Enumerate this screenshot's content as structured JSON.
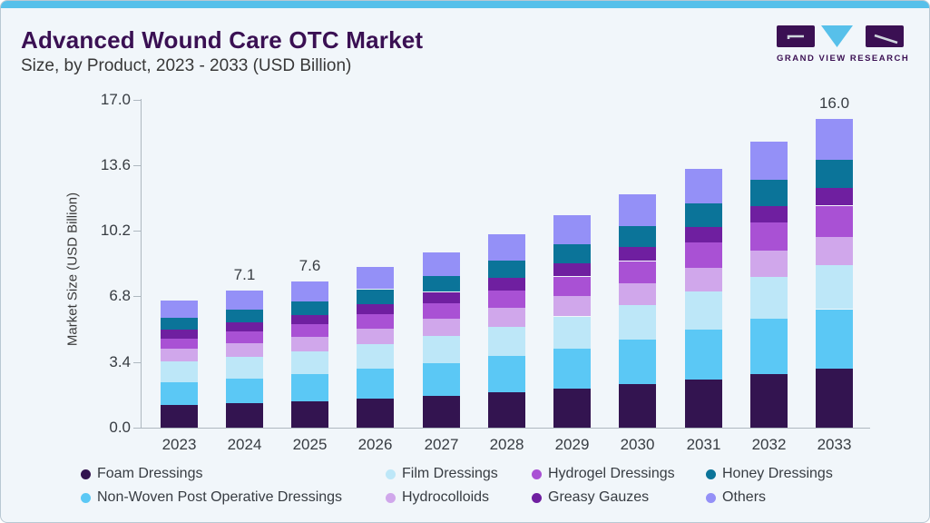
{
  "header": {
    "title": "Advanced Wound Care OTC Market",
    "subtitle": "Size, by Product, 2023 - 2033 (USD Billion)",
    "logo_text": "GRAND VIEW RESEARCH"
  },
  "colors": {
    "accent_bar": "#57c0ea",
    "card_background": "#f1f6fa",
    "title_text": "#3a1053",
    "axis_line": "#aeb8c0"
  },
  "chart_data": {
    "type": "bar",
    "stacked": true,
    "title": "Advanced Wound Care OTC Market Size, by Product, 2023 - 2033 (USD Billion)",
    "ylabel": "Market Size (USD Billion)",
    "ylim": [
      0,
      17
    ],
    "yticks": [
      "0.0",
      "3.4",
      "6.8",
      "10.2",
      "13.6",
      "17.0"
    ],
    "grid": false,
    "legend_position": "bottom",
    "categories": [
      "2023",
      "2024",
      "2025",
      "2026",
      "2027",
      "2028",
      "2029",
      "2030",
      "2031",
      "2032",
      "2033"
    ],
    "series": [
      {
        "name": "Foam Dressings",
        "color": "#331450",
        "values": [
          1.16,
          1.25,
          1.35,
          1.49,
          1.65,
          1.83,
          2.02,
          2.24,
          2.51,
          2.79,
          3.04
        ]
      },
      {
        "name": "Non-Woven Post Operative Dressings",
        "color": "#5bc8f5",
        "values": [
          1.21,
          1.31,
          1.41,
          1.55,
          1.71,
          1.89,
          2.09,
          2.31,
          2.57,
          2.86,
          3.1
        ]
      },
      {
        "name": "Film Dressings",
        "color": "#bde7f8",
        "values": [
          1.06,
          1.12,
          1.19,
          1.29,
          1.4,
          1.52,
          1.65,
          1.8,
          1.97,
          2.15,
          2.3
        ]
      },
      {
        "name": "Hydrocolloids",
        "color": "#d0a7eb",
        "values": [
          0.65,
          0.7,
          0.74,
          0.8,
          0.87,
          0.95,
          1.04,
          1.13,
          1.24,
          1.36,
          1.46
        ]
      },
      {
        "name": "Hydrogel Dressings",
        "color": "#a951d4",
        "values": [
          0.55,
          0.61,
          0.66,
          0.74,
          0.82,
          0.92,
          1.03,
          1.15,
          1.3,
          1.46,
          1.6
        ]
      },
      {
        "name": "Greasy Gauzes",
        "color": "#6f1fa0",
        "values": [
          0.46,
          0.48,
          0.5,
          0.54,
          0.58,
          0.63,
          0.67,
          0.72,
          0.79,
          0.85,
          0.9
        ]
      },
      {
        "name": "Honey Dressings",
        "color": "#0b7499",
        "values": [
          0.61,
          0.65,
          0.7,
          0.76,
          0.83,
          0.92,
          1.01,
          1.1,
          1.22,
          1.35,
          1.46
        ]
      },
      {
        "name": "Others",
        "color": "#9490f7",
        "values": [
          0.91,
          0.98,
          1.04,
          1.14,
          1.24,
          1.36,
          1.49,
          1.64,
          1.81,
          1.99,
          2.14
        ]
      }
    ],
    "bar_total_labels": {
      "2024": "7.1",
      "2025": "7.6",
      "2033": "16.0"
    }
  },
  "legend": {
    "columns": [
      {
        "x": 88,
        "items": [
          {
            "label": "Foam Dressings",
            "color": "#331450"
          },
          {
            "label": "Non-Woven Post Operative Dressings",
            "color": "#5bc8f5"
          }
        ]
      },
      {
        "x": 424,
        "items": [
          {
            "label": "Film Dressings",
            "color": "#bde7f8"
          },
          {
            "label": "Hydrocolloids",
            "color": "#d0a7eb"
          }
        ]
      },
      {
        "x": 585,
        "items": [
          {
            "label": "Hydrogel Dressings",
            "color": "#a951d4"
          },
          {
            "label": "Greasy Gauzes",
            "color": "#6f1fa0"
          }
        ]
      },
      {
        "x": 777,
        "items": [
          {
            "label": "Honey Dressings",
            "color": "#0b7499"
          },
          {
            "label": "Others",
            "color": "#9490f7"
          }
        ]
      }
    ]
  }
}
